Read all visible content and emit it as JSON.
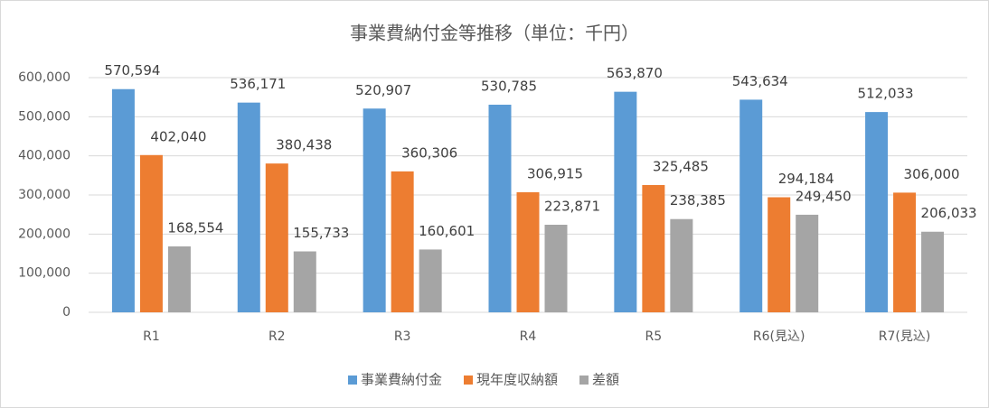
{
  "chart_data": {
    "type": "bar",
    "title": "事業費納付金等推移（単位：千円）",
    "categories": [
      "R1",
      "R2",
      "R3",
      "R4",
      "R5",
      "R6(見込)",
      "R7(見込)"
    ],
    "series": [
      {
        "name": "事業費納付金",
        "color": "#5b9bd5",
        "values": [
          570594,
          536171,
          520907,
          530785,
          563870,
          543634,
          512033
        ],
        "value_labels": [
          "570,594",
          "536,171",
          "520,907",
          "530,785",
          "563,870",
          "543,634",
          "512,033"
        ]
      },
      {
        "name": "現年度収納額",
        "color": "#ed7d31",
        "values": [
          402040,
          380438,
          360306,
          306915,
          325485,
          294184,
          306000
        ],
        "value_labels": [
          "402,040",
          "380,438",
          "360,306",
          "306,915",
          "325,485",
          "294,184",
          "306,000"
        ]
      },
      {
        "name": "差額",
        "color": "#a5a5a5",
        "values": [
          168554,
          155733,
          160601,
          223871,
          238385,
          249450,
          206033
        ],
        "value_labels": [
          "168,554",
          "155,733",
          "160,601",
          "223,871",
          "238,385",
          "249,450",
          "206,033"
        ]
      }
    ],
    "ylim": [
      0,
      600000
    ],
    "yticks": [
      0,
      {
        "value": 100000,
        "label": "100,000"
      },
      {
        "value": 200000,
        "label": "200,000"
      },
      {
        "value": 300000,
        "label": "300,000"
      },
      {
        "value": 400000,
        "label": "400,000"
      },
      {
        "value": 500000,
        "label": "500,000"
      },
      {
        "value": 600000,
        "label": "600,000"
      }
    ],
    "grid": true,
    "legend": "bottom"
  }
}
